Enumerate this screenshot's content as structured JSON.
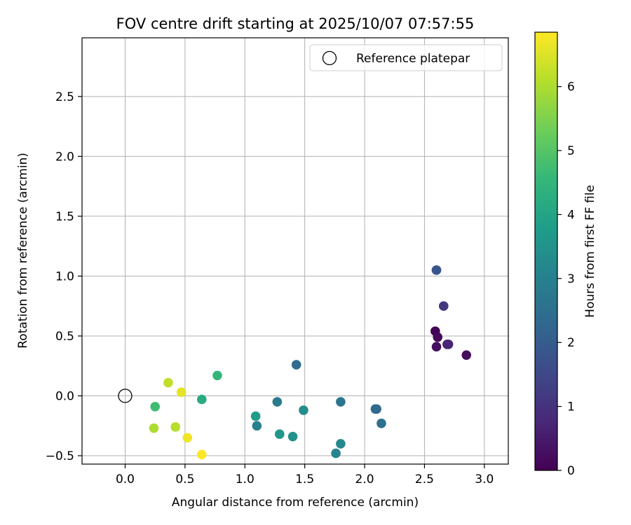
{
  "chart_data": {
    "type": "scatter",
    "title": "FOV centre drift starting at 2025/10/07 07:57:55",
    "xlabel": "Angular distance from reference (arcmin)",
    "ylabel": "Rotation from reference (arcmin)",
    "xlim": [
      -0.36,
      3.2
    ],
    "ylim": [
      -0.57,
      2.99
    ],
    "xticks": [
      0.0,
      0.5,
      1.0,
      1.5,
      2.0,
      2.5,
      3.0
    ],
    "xtick_labels": [
      "0.0",
      "0.5",
      "1.0",
      "1.5",
      "2.0",
      "2.5",
      "3.0"
    ],
    "yticks": [
      -0.5,
      0.0,
      0.5,
      1.0,
      1.5,
      2.0,
      2.5
    ],
    "ytick_labels": [
      "−0.5",
      "0.0",
      "0.5",
      "1.0",
      "1.5",
      "2.0",
      "2.5"
    ],
    "grid": true,
    "legend": {
      "position": "top-right",
      "label": "Reference platepar"
    },
    "reference_point": {
      "x": 0.0,
      "y": 0.0
    },
    "colorbar": {
      "label": "Hours from first FF file",
      "min": 0,
      "max": 6.85,
      "ticks": [
        0,
        1,
        2,
        3,
        4,
        5,
        6
      ],
      "tick_labels": [
        "0",
        "1",
        "2",
        "3",
        "4",
        "5",
        "6"
      ],
      "colormap": [
        "#440154",
        "#482878",
        "#3e4989",
        "#31688e",
        "#26828e",
        "#1f9e89",
        "#35b779",
        "#6ece58",
        "#b5de2b",
        "#fde725"
      ]
    },
    "points": [
      {
        "x": 2.59,
        "y": 0.54,
        "c": 0.05
      },
      {
        "x": 2.61,
        "y": 0.49,
        "c": 0.15
      },
      {
        "x": 2.6,
        "y": 0.41,
        "c": 0.25
      },
      {
        "x": 2.85,
        "y": 0.34,
        "c": 0.2
      },
      {
        "x": 2.69,
        "y": 0.43,
        "c": 0.55
      },
      {
        "x": 2.7,
        "y": 0.43,
        "c": 0.7
      },
      {
        "x": 2.66,
        "y": 0.75,
        "c": 1.1
      },
      {
        "x": 2.6,
        "y": 1.05,
        "c": 1.75
      },
      {
        "x": 2.6,
        "y": 1.05,
        "c": 1.85
      },
      {
        "x": 2.09,
        "y": -0.11,
        "c": 2.2
      },
      {
        "x": 2.1,
        "y": -0.11,
        "c": 2.35
      },
      {
        "x": 1.43,
        "y": 0.26,
        "c": 2.4
      },
      {
        "x": 2.14,
        "y": -0.23,
        "c": 2.55
      },
      {
        "x": 1.8,
        "y": -0.05,
        "c": 2.65
      },
      {
        "x": 1.27,
        "y": -0.05,
        "c": 2.85
      },
      {
        "x": 1.1,
        "y": -0.25,
        "c": 3.0
      },
      {
        "x": 1.76,
        "y": -0.48,
        "c": 3.1
      },
      {
        "x": 1.8,
        "y": -0.4,
        "c": 3.2
      },
      {
        "x": 1.49,
        "y": -0.12,
        "c": 3.35
      },
      {
        "x": 1.4,
        "y": -0.34,
        "c": 3.45
      },
      {
        "x": 1.29,
        "y": -0.32,
        "c": 3.6
      },
      {
        "x": 1.09,
        "y": -0.17,
        "c": 3.75
      },
      {
        "x": 0.64,
        "y": -0.03,
        "c": 4.2
      },
      {
        "x": 0.77,
        "y": 0.17,
        "c": 4.5
      },
      {
        "x": 0.25,
        "y": -0.09,
        "c": 4.7
      },
      {
        "x": 0.24,
        "y": -0.27,
        "c": 6.0
      },
      {
        "x": 0.42,
        "y": -0.26,
        "c": 6.1
      },
      {
        "x": 0.36,
        "y": 0.11,
        "c": 6.2
      },
      {
        "x": 0.47,
        "y": 0.03,
        "c": 6.6
      },
      {
        "x": 0.52,
        "y": -0.35,
        "c": 6.7
      },
      {
        "x": 0.64,
        "y": -0.49,
        "c": 6.85
      }
    ]
  }
}
